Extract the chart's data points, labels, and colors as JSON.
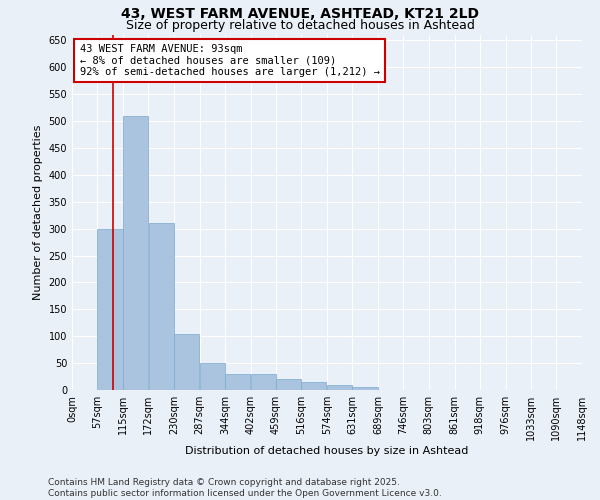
{
  "title1": "43, WEST FARM AVENUE, ASHTEAD, KT21 2LD",
  "title2": "Size of property relative to detached houses in Ashtead",
  "xlabel": "Distribution of detached houses by size in Ashtead",
  "ylabel": "Number of detached properties",
  "bin_edges": [
    0,
    57,
    115,
    172,
    230,
    287,
    344,
    402,
    459,
    516,
    574,
    631,
    689,
    746,
    803,
    861,
    918,
    976,
    1033,
    1090,
    1148
  ],
  "bin_labels": [
    "0sqm",
    "57sqm",
    "115sqm",
    "172sqm",
    "230sqm",
    "287sqm",
    "344sqm",
    "402sqm",
    "459sqm",
    "516sqm",
    "574sqm",
    "631sqm",
    "689sqm",
    "746sqm",
    "803sqm",
    "861sqm",
    "918sqm",
    "976sqm",
    "1033sqm",
    "1090sqm",
    "1148sqm"
  ],
  "bar_heights": [
    0,
    300,
    510,
    310,
    105,
    50,
    30,
    30,
    20,
    15,
    10,
    5,
    0,
    0,
    0,
    0,
    0,
    0,
    0,
    0,
    0
  ],
  "bar_color": "#aac4e0",
  "bar_edge_color": "#7aaad0",
  "property_sqm": 93,
  "red_line_color": "#cc0000",
  "annotation_text": "43 WEST FARM AVENUE: 93sqm\n← 8% of detached houses are smaller (109)\n92% of semi-detached houses are larger (1,212) →",
  "annotation_box_color": "#ffffff",
  "annotation_box_edge": "#cc0000",
  "ylim": [
    0,
    660
  ],
  "yticks": [
    0,
    50,
    100,
    150,
    200,
    250,
    300,
    350,
    400,
    450,
    500,
    550,
    600,
    650
  ],
  "bg_color": "#eaf0f8",
  "grid_color": "#ffffff",
  "fig_bg_color": "#eaf0f8",
  "footer_text": "Contains HM Land Registry data © Crown copyright and database right 2025.\nContains public sector information licensed under the Open Government Licence v3.0.",
  "title1_fontsize": 10,
  "title2_fontsize": 9,
  "xlabel_fontsize": 8,
  "ylabel_fontsize": 8,
  "tick_fontsize": 7,
  "annotation_fontsize": 7.5,
  "footer_fontsize": 6.5
}
